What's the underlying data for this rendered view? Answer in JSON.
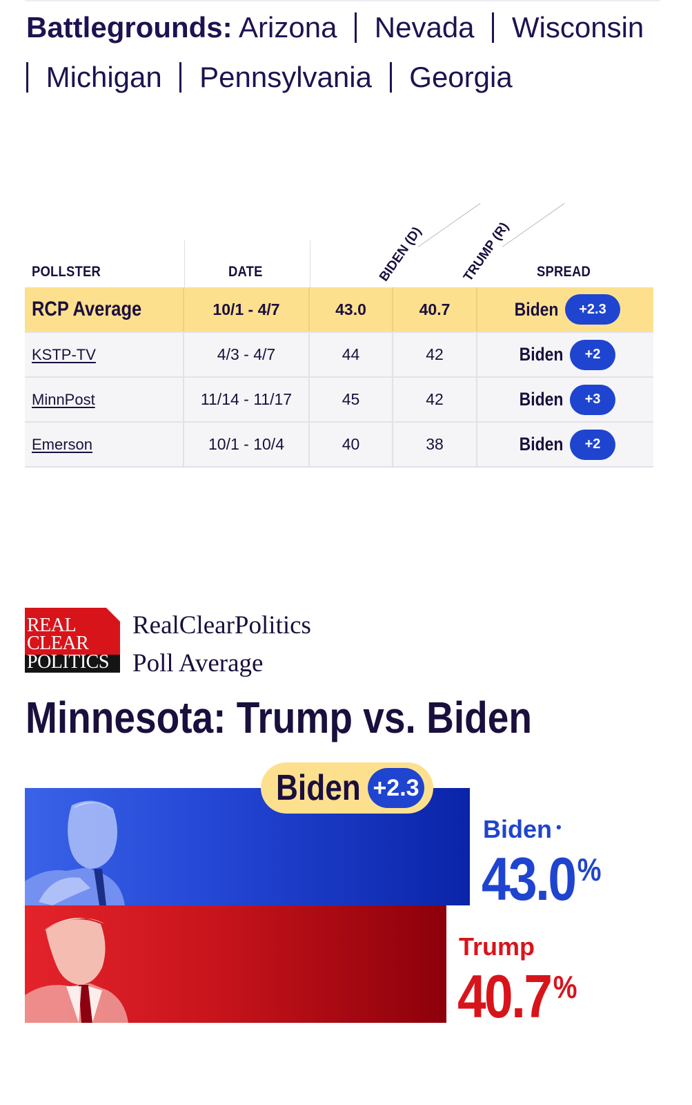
{
  "battlegrounds": {
    "title": "Battlegrounds:",
    "states": [
      "Arizona",
      "Nevada",
      "Wisconsin",
      "Michigan",
      "Pennsylvania",
      "Georgia"
    ]
  },
  "table": {
    "headers": {
      "pollster": "POLLSTER",
      "date": "DATE",
      "biden": "BIDEN (D)",
      "trump": "TRUMP (R)",
      "spread": "SPREAD"
    },
    "average": {
      "pollster": "RCP Average",
      "date": "10/1 - 4/7",
      "biden": "43.0",
      "trump": "40.7",
      "spread_name": "Biden",
      "spread_value": "+2.3"
    },
    "rows": [
      {
        "pollster": "KSTP-TV",
        "date": "4/3 - 4/7",
        "biden": "44",
        "trump": "42",
        "spread_name": "Biden",
        "spread_value": "+2"
      },
      {
        "pollster": "MinnPost",
        "date": "11/14 - 11/17",
        "biden": "45",
        "trump": "42",
        "spread_name": "Biden",
        "spread_value": "+3"
      },
      {
        "pollster": "Emerson",
        "date": "10/1 - 10/4",
        "biden": "40",
        "trump": "38",
        "spread_name": "Biden",
        "spread_value": "+2"
      }
    ]
  },
  "rcp": {
    "logo_words": [
      "REAL",
      "CLEAR",
      "POLITICS"
    ],
    "line1": "RealClearPolitics",
    "line2": "Poll Average"
  },
  "matchup": {
    "title": "Minnesota: Trump vs. Biden",
    "leader_name": "Biden",
    "leader_spread": "+2.3",
    "biden": {
      "name": "Biden",
      "dot": "•",
      "pct": "43.0",
      "pct_symbol": "%",
      "share": 43.0
    },
    "trump": {
      "name": "Trump",
      "pct": "40.7",
      "pct_symbol": "%",
      "share": 40.7
    }
  },
  "colors": {
    "navy": "#1a0f3d",
    "dem_blue": "#1f44cf",
    "rep_red": "#d8141b",
    "highlight": "#fde08e"
  },
  "icons": {
    "biden_portrait": "biden-portrait-icon",
    "trump_portrait": "trump-portrait-icon",
    "rcp_logo": "rcp-logo-icon"
  }
}
